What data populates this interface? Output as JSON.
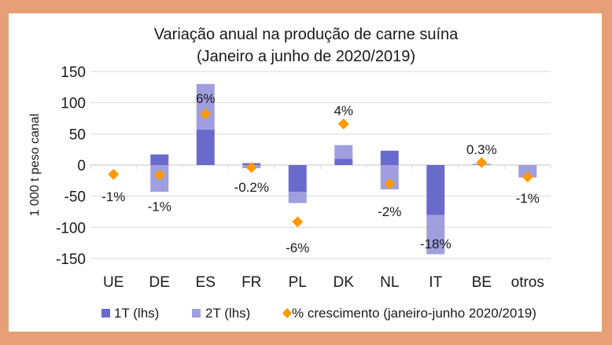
{
  "chart_data": {
    "type": "bar",
    "stacked": true,
    "title": "Variação anual na produção de carne suína",
    "subtitle": "(Janeiro a junho de 2020/2019)",
    "ylabel": "1 000 t peso canal",
    "xlabel": "",
    "ylim": [
      -150,
      150
    ],
    "yticks": [
      150,
      100,
      50,
      0,
      -50,
      -100,
      -150
    ],
    "grid": true,
    "legend_position": "bottom",
    "categories": [
      "UE",
      "DE",
      "ES",
      "FR",
      "PL",
      "DK",
      "NL",
      "IT",
      "BE",
      "otros"
    ],
    "series": [
      {
        "name": "1T (lhs)",
        "type": "bar",
        "color": "#6A6ACD",
        "values": [
          0,
          17,
          57,
          3,
          -43,
          10,
          23,
          -80,
          0,
          0
        ]
      },
      {
        "name": "2T (lhs)",
        "type": "bar",
        "color": "#A09EDE",
        "values": [
          0,
          -43,
          73,
          -5,
          -18,
          22,
          -39,
          -63,
          2,
          -20
        ]
      },
      {
        "name": "% crescimento (janeiro-junho 2020/2019)",
        "type": "scatter",
        "marker": "diamond",
        "color": "#FF9900",
        "values": [
          -15,
          -16,
          82,
          -4,
          -91,
          66,
          -30,
          null,
          4,
          -19
        ],
        "labels": [
          "-1%",
          "-1%",
          "6%",
          "-0.2%",
          "-6%",
          "4%",
          "-2%",
          "-18%",
          "0.3%",
          "-1%"
        ]
      }
    ]
  }
}
